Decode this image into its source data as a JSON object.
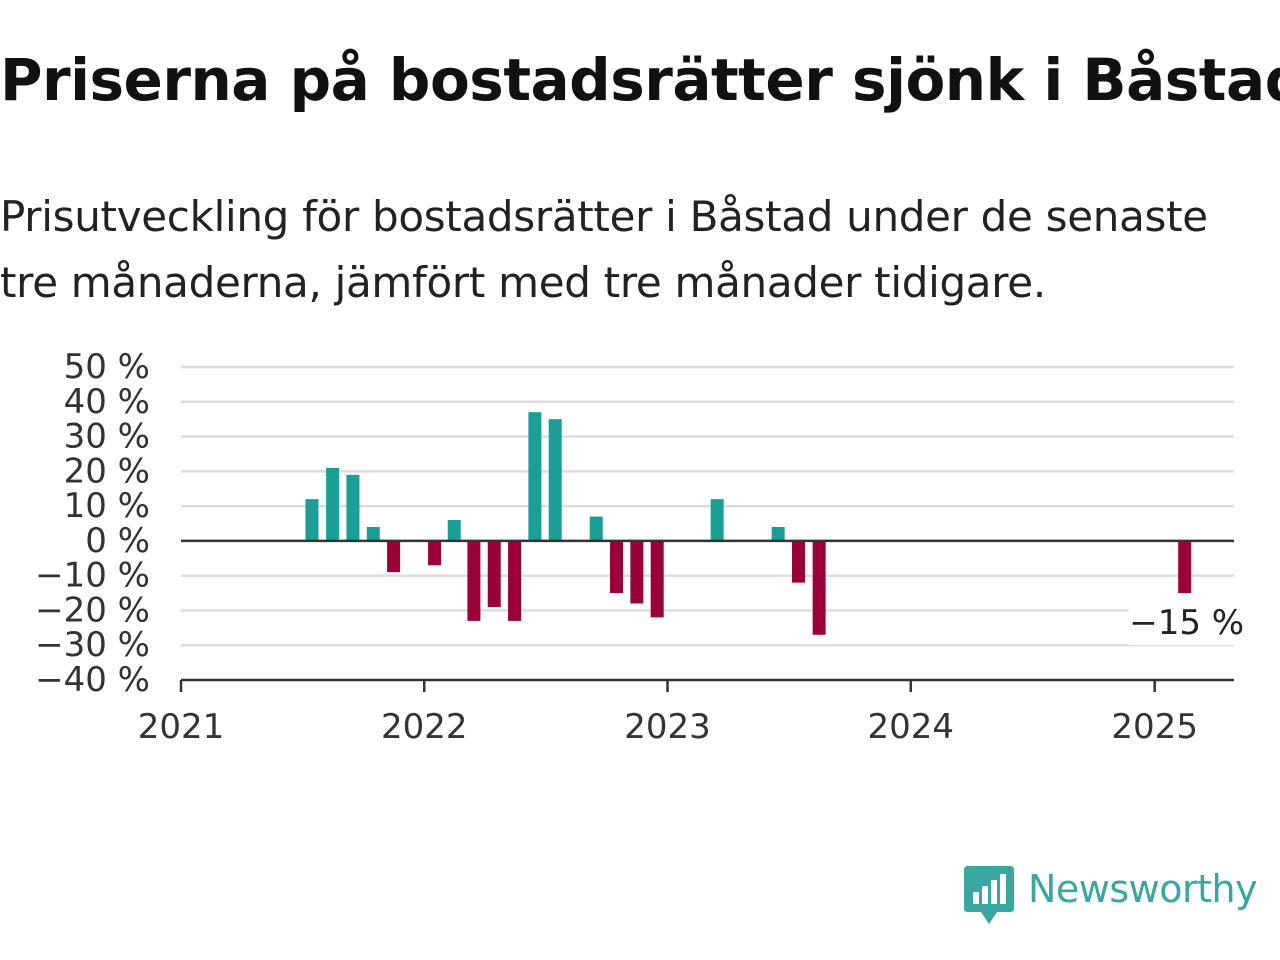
{
  "title": "Priserna på bostadsrätter sjönk i Båstad",
  "subtitle": "Prisutveckling för bostadsrätter i Båstad under de senaste tre månaderna, jämfört med tre månader tidigare.",
  "brand": {
    "name": "Newsworthy",
    "color": "#3aa6a0",
    "icon": "newsworthy-logo-icon"
  },
  "chart_data": {
    "type": "bar",
    "title": "Priserna på bostadsrätter sjönk i Båstad",
    "subtitle": "Prisutveckling för bostadsrätter i Båstad under de senaste tre månaderna, jämfört med tre månader tidigare.",
    "xlabel": "",
    "ylabel": "",
    "x_axis": {
      "type": "date",
      "range": [
        "2021-01-01",
        "2025-04-30"
      ],
      "ticks": [
        "2021-01-01",
        "2022-01-01",
        "2023-01-01",
        "2024-01-01",
        "2025-01-01"
      ],
      "tick_labels": [
        "2021",
        "2022",
        "2023",
        "2024",
        "2025"
      ]
    },
    "y_axis": {
      "range": [
        -40,
        50
      ],
      "ticks": [
        -40,
        -30,
        -20,
        -10,
        0,
        10,
        20,
        30,
        40,
        50
      ],
      "tick_labels": [
        "−40 %",
        "−30 %",
        "−20 %",
        "−10 %",
        "0 %",
        "10 %",
        "20 %",
        "30 %",
        "40 %",
        "50 %"
      ]
    },
    "grid": true,
    "legend": "none",
    "colors": {
      "positive": "#1a9e96",
      "negative": "#9b0039",
      "grid": "#dddddd",
      "axis": "#333333"
    },
    "series": [
      {
        "values": [
          {
            "x": "2021-07",
            "y": 12
          },
          {
            "x": "2021-08",
            "y": 21
          },
          {
            "x": "2021-09",
            "y": 19
          },
          {
            "x": "2021-10",
            "y": 4
          },
          {
            "x": "2021-11",
            "y": -9
          },
          {
            "x": "2022-01",
            "y": -7
          },
          {
            "x": "2022-02",
            "y": 6
          },
          {
            "x": "2022-03",
            "y": -23
          },
          {
            "x": "2022-04",
            "y": -19
          },
          {
            "x": "2022-05",
            "y": -23
          },
          {
            "x": "2022-06",
            "y": 37
          },
          {
            "x": "2022-07",
            "y": 35
          },
          {
            "x": "2022-09",
            "y": 7
          },
          {
            "x": "2022-10",
            "y": -15
          },
          {
            "x": "2022-11",
            "y": -18
          },
          {
            "x": "2022-12",
            "y": -22
          },
          {
            "x": "2023-03",
            "y": 12
          },
          {
            "x": "2023-06",
            "y": 4
          },
          {
            "x": "2023-07",
            "y": -12
          },
          {
            "x": "2023-08",
            "y": -27
          },
          {
            "x": "2025-02",
            "y": -15
          }
        ]
      }
    ],
    "annotations": [
      {
        "x": "2025-02",
        "y": -15,
        "text": "−15 %"
      }
    ]
  }
}
